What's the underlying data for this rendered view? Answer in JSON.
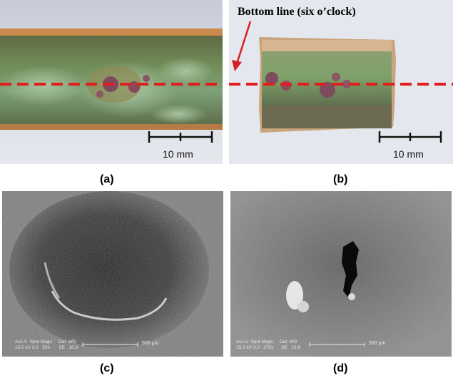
{
  "figure": {
    "panels": [
      {
        "id": "a",
        "caption": "(a)",
        "scale_bar": "10 mm"
      },
      {
        "id": "b",
        "caption": "(b)",
        "scale_bar": "10 mm",
        "annotation": "Bottom line (six o’clock)"
      },
      {
        "id": "c",
        "caption": "(c)",
        "sem_header": "Acc.V  Spot Magn     Det  WD",
        "sem_values": "15.0 kV 3.0   50x       SE   10.3",
        "scale_bar": "500 µm"
      },
      {
        "id": "d",
        "caption": "(d)",
        "sem_header": "Acc.V  Spot Magn     Det  WD",
        "sem_values": "15.0 kV 3.0   270x      SE   10.9",
        "scale_bar": "500 µm"
      }
    ],
    "colors": {
      "dashed_line": "#e01e1e",
      "copper": "#c98a4b",
      "patina": "#7f9f6a",
      "pit": "#8a4a5a"
    }
  }
}
